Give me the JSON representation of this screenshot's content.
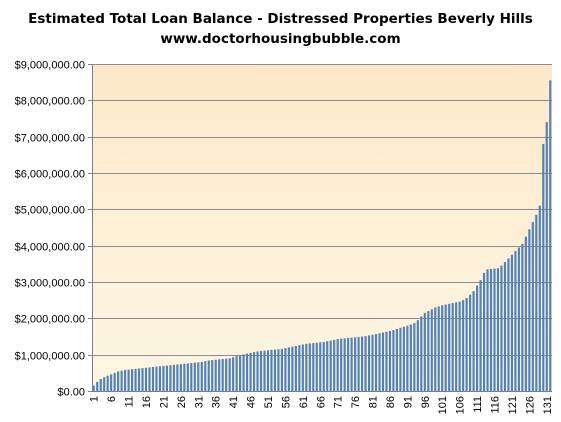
{
  "chart_data": {
    "type": "bar",
    "title": "Estimated Total Loan Balance - Distressed Properties Beverly Hills",
    "subtitle": "www.doctorhousingbubble.com",
    "xlabel": "",
    "ylabel": "",
    "ylim": [
      0,
      9000000
    ],
    "y_ticks": [
      "$0.00",
      "$1,000,000.00",
      "$2,000,000.00",
      "$3,000,000.00",
      "$4,000,000.00",
      "$5,000,000.00",
      "$6,000,000.00",
      "$7,000,000.00",
      "$8,000,000.00",
      "$9,000,000.00"
    ],
    "y_tick_values": [
      0,
      1000000,
      2000000,
      3000000,
      4000000,
      5000000,
      6000000,
      7000000,
      8000000,
      9000000
    ],
    "x_ticks": [
      "1",
      "6",
      "11",
      "16",
      "21",
      "26",
      "31",
      "36",
      "41",
      "46",
      "51",
      "56",
      "61",
      "66",
      "71",
      "76",
      "81",
      "86",
      "91",
      "96",
      "101",
      "106",
      "111",
      "116",
      "121",
      "126",
      "131"
    ],
    "grid": "horizontal",
    "bar_color": "#4f81bd",
    "plot_gradient": [
      "#fde9c9",
      "#fdf6e4"
    ],
    "categories": [
      1,
      2,
      3,
      4,
      5,
      6,
      7,
      8,
      9,
      10,
      11,
      12,
      13,
      14,
      15,
      16,
      17,
      18,
      19,
      20,
      21,
      22,
      23,
      24,
      25,
      26,
      27,
      28,
      29,
      30,
      31,
      32,
      33,
      34,
      35,
      36,
      37,
      38,
      39,
      40,
      41,
      42,
      43,
      44,
      45,
      46,
      47,
      48,
      49,
      50,
      51,
      52,
      53,
      54,
      55,
      56,
      57,
      58,
      59,
      60,
      61,
      62,
      63,
      64,
      65,
      66,
      67,
      68,
      69,
      70,
      71,
      72,
      73,
      74,
      75,
      76,
      77,
      78,
      79,
      80,
      81,
      82,
      83,
      84,
      85,
      86,
      87,
      88,
      89,
      90,
      91,
      92,
      93,
      94,
      95,
      96,
      97,
      98,
      99,
      100,
      101,
      102,
      103,
      104,
      105,
      106,
      107,
      108,
      109,
      110,
      111,
      112,
      113,
      114,
      115,
      116,
      117,
      118,
      119,
      120,
      121,
      122,
      123,
      124,
      125,
      126,
      127,
      128,
      129,
      130,
      131,
      132
    ],
    "values": [
      150000,
      250000,
      330000,
      380000,
      420000,
      460000,
      500000,
      540000,
      560000,
      580000,
      590000,
      600000,
      610000,
      620000,
      630000,
      640000,
      650000,
      660000,
      670000,
      680000,
      690000,
      700000,
      710000,
      720000,
      730000,
      740000,
      750000,
      760000,
      770000,
      780000,
      790000,
      800000,
      820000,
      840000,
      850000,
      860000,
      870000,
      880000,
      890000,
      900000,
      930000,
      960000,
      990000,
      1010000,
      1030000,
      1050000,
      1070000,
      1090000,
      1100000,
      1110000,
      1120000,
      1130000,
      1140000,
      1150000,
      1160000,
      1180000,
      1200000,
      1220000,
      1240000,
      1260000,
      1280000,
      1300000,
      1310000,
      1320000,
      1330000,
      1340000,
      1350000,
      1370000,
      1390000,
      1410000,
      1430000,
      1440000,
      1450000,
      1460000,
      1470000,
      1480000,
      1490000,
      1500000,
      1510000,
      1530000,
      1550000,
      1570000,
      1590000,
      1610000,
      1630000,
      1650000,
      1680000,
      1710000,
      1740000,
      1770000,
      1800000,
      1830000,
      1870000,
      1950000,
      2050000,
      2150000,
      2200000,
      2250000,
      2300000,
      2330000,
      2360000,
      2380000,
      2400000,
      2420000,
      2440000,
      2460000,
      2500000,
      2560000,
      2650000,
      2750000,
      2900000,
      3050000,
      3250000,
      3350000,
      3360000,
      3370000,
      3380000,
      3450000,
      3550000,
      3650000,
      3750000,
      3850000,
      3950000,
      4050000,
      4250000,
      4450000,
      4650000,
      4850000,
      5100000,
      6800000,
      7400000,
      8550000
    ]
  }
}
